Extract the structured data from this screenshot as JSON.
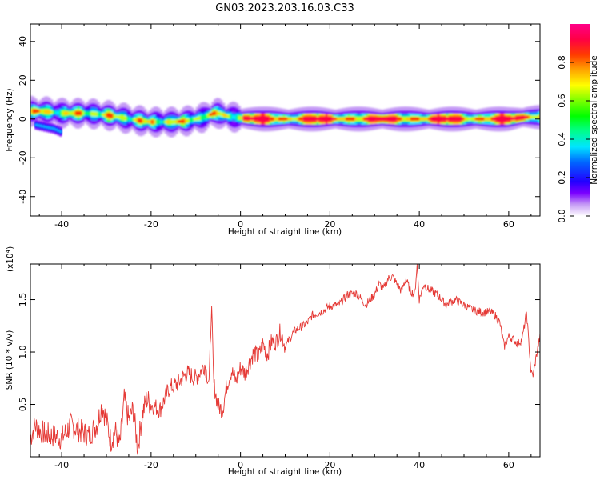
{
  "chart_data": [
    {
      "type": "heatmap",
      "title": "GN03.2023.203.16.03.C33",
      "xlabel": "Height of straight line (km)",
      "ylabel": "Frequency (Hz)",
      "xlim": [
        -47,
        67
      ],
      "ylim": [
        -50,
        49
      ],
      "xticks": [
        "-40",
        "-20",
        "0",
        "20",
        "40",
        "60"
      ],
      "yticks": [
        "40",
        "20",
        "0",
        "-20",
        "-40"
      ],
      "colorbar": {
        "label": "Normalized spectral amplitude",
        "ticks": [
          "0.0",
          "0.2",
          "0.4",
          "0.6",
          "0.8"
        ],
        "range": [
          0,
          1
        ],
        "colormap": "gist_rainbow_r"
      },
      "ridge": {
        "description_values": "frequency of peak amplitude (Hz) vs height (km)",
        "x": [
          -45,
          -42,
          -40,
          -37,
          -35,
          -32,
          -30,
          -27,
          -25,
          -22,
          -20,
          -17,
          -15,
          -12,
          -10,
          -8,
          -6,
          -5,
          -3,
          0,
          5,
          10,
          20,
          30,
          40,
          50,
          60,
          64,
          67
        ],
        "y": [
          4,
          3.5,
          3,
          3,
          3,
          2.5,
          2,
          1,
          0,
          -1,
          -1.5,
          -1.5,
          -1.5,
          -1,
          0,
          1,
          3,
          3,
          1.5,
          0.5,
          0,
          0,
          0,
          0,
          0,
          0,
          0,
          1,
          1
        ]
      },
      "branch": {
        "x": [
          -46,
          -44,
          -42,
          -40
        ],
        "y": [
          -3,
          -4,
          -5,
          -7
        ]
      }
    },
    {
      "type": "line",
      "xlabel": "Height of straight line (km)",
      "ylabel": "SNR (10 * v/v)",
      "multiplier_label": "(x10",
      "multiplier_exp": "4",
      "xlim": [
        -47,
        67
      ],
      "ylim": [
        0.0,
        1.84
      ],
      "y_unit_scale": 10000,
      "xticks": [
        "-40",
        "-20",
        "0",
        "20",
        "40",
        "60"
      ],
      "yticks": [
        "0.5",
        "1.0",
        "1.5"
      ],
      "line_color": "#e53935",
      "series": [
        {
          "x": [
            -47,
            -46,
            -44,
            -42,
            -40,
            -38,
            -36,
            -34,
            -32,
            -31,
            -30,
            -29,
            -28,
            -27,
            -26,
            -25,
            -24,
            -23,
            -22,
            -21,
            -20,
            -18,
            -16,
            -14,
            -12,
            -10,
            -8,
            -7,
            -6.5,
            -6,
            -5,
            -4,
            -3,
            -2,
            -1,
            0,
            1,
            2,
            3,
            4,
            5,
            6,
            7,
            8,
            9,
            10,
            12,
            14,
            15,
            16,
            18,
            20,
            22,
            24,
            26,
            28,
            30,
            31,
            32,
            33,
            34,
            35,
            36,
            37,
            38,
            39,
            39.5,
            40,
            41,
            42,
            44,
            46,
            48,
            50,
            52,
            54,
            56,
            57,
            58,
            59,
            60,
            61,
            62,
            63,
            64,
            65,
            65.5,
            66,
            67
          ],
          "y": [
            0.18,
            0.3,
            0.22,
            0.2,
            0.18,
            0.3,
            0.25,
            0.2,
            0.32,
            0.5,
            0.35,
            0.15,
            0.25,
            0.1,
            0.55,
            0.35,
            0.45,
            0.08,
            0.4,
            0.55,
            0.5,
            0.45,
            0.65,
            0.7,
            0.8,
            0.75,
            0.88,
            0.7,
            1.47,
            0.7,
            0.48,
            0.45,
            0.7,
            0.82,
            0.72,
            0.85,
            0.8,
            0.9,
            1.0,
            0.95,
            1.08,
            0.98,
            1.1,
            1.1,
            1.2,
            1.05,
            1.2,
            1.25,
            1.28,
            1.35,
            1.38,
            1.44,
            1.45,
            1.55,
            1.56,
            1.45,
            1.55,
            1.65,
            1.6,
            1.7,
            1.72,
            1.65,
            1.58,
            1.7,
            1.58,
            1.55,
            1.84,
            1.5,
            1.65,
            1.6,
            1.55,
            1.45,
            1.5,
            1.45,
            1.4,
            1.38,
            1.38,
            1.35,
            1.28,
            1.05,
            1.15,
            1.12,
            1.08,
            1.12,
            1.38,
            0.8,
            0.78,
            0.92,
            1.15
          ]
        }
      ]
    }
  ]
}
